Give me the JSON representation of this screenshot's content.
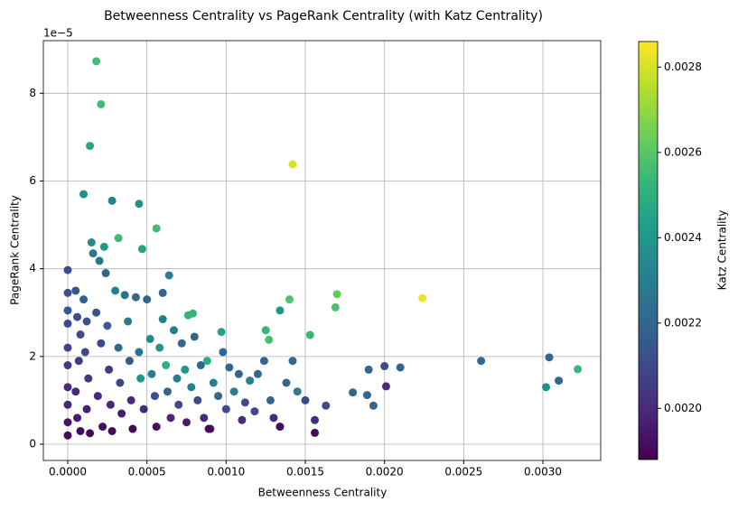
{
  "chart_data": {
    "type": "scatter",
    "title": "Betweenness Centrality vs PageRank Centrality (with Katz Centrality)",
    "x_label": "Betweenness Centrality",
    "y_label": "PageRank Centrality",
    "y_offset_label": "1e−5",
    "colormap": "viridis",
    "grid": true,
    "xlim": [
      -0.000154,
      0.003365
    ],
    "ylim": [
      -0.37,
      9.2
    ],
    "xticks": [
      {
        "value": 0,
        "label": "0.0000"
      },
      0.0005,
      {
        "value": 0.001,
        "label": "0.0010"
      },
      0.0015,
      {
        "value": 0.002,
        "label": "0.0020"
      },
      0.0025,
      {
        "value": 0.003,
        "label": "0.0030"
      }
    ],
    "yticks": [
      0,
      2,
      4,
      6,
      8
    ],
    "colorbar": {
      "label": "Katz Centrality",
      "lim": [
        0.00188,
        0.00286
      ],
      "ticks": [
        {
          "value": 0.002,
          "label": "0.0020"
        },
        0.0022,
        0.0024,
        0.0026,
        0.0028
      ]
    },
    "x": [
      0.00018,
      0.00021,
      0.00014,
      0.00142,
      0.0001,
      0.00028,
      0.00045,
      0.00056,
      0.00032,
      0.00047,
      0.00015,
      0.00023,
      0,
      0.00064,
      0.00224,
      0.0017,
      0.0014,
      0.00169,
      0.00134,
      0.00079,
      0.00076,
      0.00097,
      0.00125,
      0.00153,
      0.00127,
      0.00261,
      0.00304,
      0.00322,
      0.00302,
      0.0031,
      0.0021,
      0.002,
      0.0019,
      0.00201,
      0.0018,
      0.00189,
      0.00193,
      0.00156,
      0.00156,
      0.00163,
      0.0015,
      0.00134,
      0.0011,
      0.00089,
      0,
      0,
      0,
      0,
      0,
      0,
      0,
      0,
      0,
      5e-05,
      6e-05,
      8e-05,
      7e-05,
      5e-05,
      6e-05,
      8e-05,
      0.0001,
      0.00012,
      0.00011,
      0.00013,
      0.00012,
      0.00014,
      0.00016,
      0.00018,
      0.0002,
      0.00021,
      0.00019,
      0.00022,
      0.00024,
      0.00025,
      0.00026,
      0.00027,
      0.00028,
      0.0003,
      0.00032,
      0.00033,
      0.00034,
      0.00036,
      0.00038,
      0.00039,
      0.0004,
      0.00041,
      0.00043,
      0.00045,
      0.00046,
      0.00048,
      0.0005,
      0.00052,
      0.00053,
      0.00055,
      0.00056,
      0.00058,
      0.0006,
      0.0006,
      0.00062,
      0.00063,
      0.00065,
      0.00067,
      0.00069,
      0.0007,
      0.00072,
      0.00074,
      0.00075,
      0.00078,
      0.0008,
      0.00082,
      0.00084,
      0.00086,
      0.00088,
      0.0009,
      0.00092,
      0.00095,
      0.00098,
      0.001,
      0.00102,
      0.00105,
      0.00108,
      0.00112,
      0.00115,
      0.00118,
      0.0012,
      0.00124,
      0.00128,
      0.0013,
      0.00138,
      0.00142,
      0.00145
    ],
    "y": [
      8.73,
      7.75,
      6.8,
      6.38,
      5.7,
      5.55,
      5.48,
      4.92,
      4.7,
      4.45,
      4.6,
      4.5,
      3.97,
      3.85,
      3.33,
      3.42,
      3.3,
      3.12,
      3.05,
      2.98,
      2.94,
      2.56,
      2.6,
      2.49,
      2.38,
      1.9,
      1.98,
      1.71,
      1.3,
      1.45,
      1.75,
      1.78,
      1.7,
      1.32,
      1.18,
      1.12,
      0.88,
      0.55,
      0.26,
      0.88,
      1.0,
      0.4,
      0.55,
      0.35,
      3.45,
      3.05,
      2.75,
      2.2,
      1.8,
      1.3,
      0.9,
      0.5,
      0.2,
      3.5,
      2.9,
      2.5,
      1.9,
      1.2,
      0.6,
      0.3,
      3.3,
      2.8,
      2.1,
      1.5,
      0.8,
      0.25,
      4.35,
      3.0,
      4.18,
      2.3,
      1.1,
      0.4,
      3.9,
      2.7,
      1.7,
      0.9,
      0.3,
      3.5,
      2.2,
      1.4,
      0.7,
      3.4,
      2.8,
      1.9,
      1.0,
      0.35,
      3.35,
      2.1,
      1.5,
      0.8,
      3.3,
      2.4,
      1.6,
      1.1,
      0.4,
      2.2,
      3.45,
      2.85,
      1.8,
      1.2,
      0.6,
      2.6,
      1.5,
      0.9,
      2.3,
      1.7,
      0.5,
      1.3,
      2.45,
      1.0,
      1.8,
      0.6,
      1.9,
      0.35,
      1.4,
      1.1,
      2.1,
      0.8,
      1.75,
      1.2,
      1.6,
      0.95,
      1.45,
      0.75,
      1.6,
      1.9,
      1.0,
      0.6,
      1.4,
      1.9,
      1.2
    ],
    "color_values": [
      0.00256,
      0.00255,
      0.00247,
      0.0028,
      0.00237,
      0.00232,
      0.00238,
      0.00256,
      0.00255,
      0.00245,
      0.00236,
      0.0024,
      0.0021,
      0.0023,
      0.00283,
      0.00262,
      0.00258,
      0.00258,
      0.0024,
      0.00253,
      0.00252,
      0.00244,
      0.00253,
      0.00254,
      0.00257,
      0.0022,
      0.0022,
      0.00254,
      0.00237,
      0.0022,
      0.0022,
      0.0021,
      0.0022,
      0.002,
      0.0022,
      0.0022,
      0.0022,
      0.002,
      0.0019,
      0.0021,
      0.0021,
      0.0019,
      0.002,
      0.0019,
      0.00212,
      0.00215,
      0.0021,
      0.00208,
      0.00205,
      0.002,
      0.00198,
      0.00193,
      0.0019,
      0.00215,
      0.00212,
      0.0021,
      0.00205,
      0.002,
      0.00195,
      0.0019,
      0.00218,
      0.00213,
      0.0021,
      0.00204,
      0.00197,
      0.0019,
      0.00228,
      0.00214,
      0.00225,
      0.0021,
      0.002,
      0.00192,
      0.0022,
      0.00216,
      0.00205,
      0.00198,
      0.0019,
      0.0023,
      0.00222,
      0.00208,
      0.00196,
      0.00225,
      0.0023,
      0.00215,
      0.002,
      0.0019,
      0.0022,
      0.00225,
      0.0024,
      0.002,
      0.0022,
      0.00235,
      0.0023,
      0.0021,
      0.00192,
      0.0024,
      0.0022,
      0.0023,
      0.0025,
      0.0022,
      0.00198,
      0.0023,
      0.0023,
      0.0021,
      0.0022,
      0.0024,
      0.00196,
      0.0023,
      0.0022,
      0.0021,
      0.0022,
      0.002,
      0.0025,
      0.0019,
      0.0023,
      0.0022,
      0.0022,
      0.0021,
      0.0022,
      0.0023,
      0.0022,
      0.0021,
      0.0023,
      0.0021,
      0.0022,
      0.0022,
      0.0022,
      0.002,
      0.0022,
      0.0022,
      0.0023
    ]
  }
}
